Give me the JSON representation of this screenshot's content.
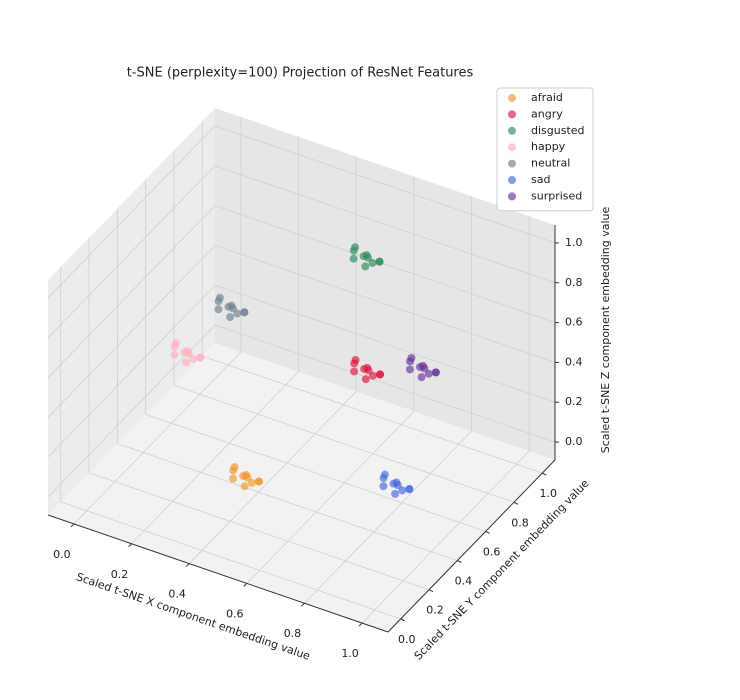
{
  "chart_data": {
    "type": "scatter3d",
    "title": "t-SNE (perplexity=100) Projection of ResNet Features",
    "xlabel": "Scaled t-SNE X component embedding value",
    "ylabel": "Scaled t-SNE Y component embedding value",
    "zlabel": "Scaled t-SNE Z component embedding value",
    "xlim": [
      -0.09,
      1.09
    ],
    "ylim": [
      -0.09,
      1.09
    ],
    "zlim": [
      -0.09,
      1.09
    ],
    "xticks": [
      {
        "value": 0,
        "label": "0.0"
      },
      0.2,
      0.4,
      0.6,
      0.8,
      {
        "value": 1,
        "label": "1.0"
      }
    ],
    "yticks": [
      {
        "value": 0,
        "label": "0.0"
      },
      0.2,
      0.4,
      0.6,
      0.8,
      {
        "value": 1,
        "label": "1.0"
      }
    ],
    "zticks": [
      {
        "value": 0,
        "label": "0.0"
      },
      0.2,
      0.4,
      0.6,
      0.8,
      {
        "value": 1,
        "label": "1.0"
      }
    ],
    "grid": true,
    "legend": "upper right",
    "series": [
      {
        "name": "afraid",
        "color": "#f0962a",
        "x": [
          0.45,
          0.49,
          0.41,
          0.48,
          0.42,
          0.47,
          0.43,
          0.5,
          0.4,
          0.46
        ],
        "y": [
          0.22,
          0.17,
          0.21,
          0.24,
          0.18,
          0.16,
          0.23,
          0.2,
          0.22,
          0.19
        ],
        "z": [
          0.14,
          0.17,
          0.18,
          0.12,
          0.19,
          0.15,
          0.13,
          0.16,
          0.11,
          0.18
        ]
      },
      {
        "name": "angry",
        "color": "#dc143c",
        "x": [
          0.6,
          0.64,
          0.56,
          0.63,
          0.57,
          0.62,
          0.58,
          0.65,
          0.55,
          0.61
        ],
        "y": [
          0.77,
          0.72,
          0.76,
          0.79,
          0.73,
          0.71,
          0.78,
          0.75,
          0.77,
          0.74
        ],
        "z": [
          0.35,
          0.38,
          0.39,
          0.33,
          0.4,
          0.36,
          0.34,
          0.37,
          0.32,
          0.39
        ]
      },
      {
        "name": "disgusted",
        "color": "#2e8b57",
        "x": [
          0.5,
          0.54,
          0.46,
          0.53,
          0.47,
          0.52,
          0.48,
          0.55,
          0.45,
          0.51
        ],
        "y": [
          0.97,
          0.92,
          0.96,
          0.99,
          0.93,
          0.91,
          0.98,
          0.95,
          0.97,
          0.94
        ],
        "z": [
          0.72,
          0.75,
          0.76,
          0.7,
          0.77,
          0.73,
          0.71,
          0.74,
          0.69,
          0.76
        ]
      },
      {
        "name": "happy",
        "color": "#ffb0bf",
        "x": [
          0.05,
          0.09,
          0.01,
          0.08,
          0.02,
          0.07,
          0.03,
          0.1,
          0.0,
          0.06
        ],
        "y": [
          0.62,
          0.57,
          0.61,
          0.64,
          0.58,
          0.56,
          0.63,
          0.6,
          0.62,
          0.59
        ],
        "z": [
          0.27,
          0.3,
          0.31,
          0.25,
          0.32,
          0.28,
          0.26,
          0.29,
          0.24,
          0.31
        ]
      },
      {
        "name": "neutral",
        "color": "#708090",
        "x": [
          0.08,
          0.12,
          0.04,
          0.11,
          0.05,
          0.1,
          0.06,
          0.13,
          0.03,
          0.09
        ],
        "y": [
          0.87,
          0.82,
          0.86,
          0.89,
          0.83,
          0.81,
          0.88,
          0.85,
          0.87,
          0.84
        ],
        "z": [
          0.33,
          0.36,
          0.37,
          0.31,
          0.38,
          0.34,
          0.32,
          0.35,
          0.3,
          0.37
        ]
      },
      {
        "name": "sad",
        "color": "#4169e1",
        "x": [
          0.8,
          0.84,
          0.76,
          0.83,
          0.77,
          0.82,
          0.78,
          0.85,
          0.75,
          0.81
        ],
        "y": [
          0.57,
          0.52,
          0.56,
          0.59,
          0.53,
          0.51,
          0.58,
          0.55,
          0.57,
          0.54
        ],
        "z": [
          0.02,
          0.05,
          0.06,
          0.0,
          0.07,
          0.03,
          0.01,
          0.04,
          -0.01,
          0.06
        ]
      },
      {
        "name": "surprised",
        "color": "#663399",
        "x": [
          0.72,
          0.76,
          0.68,
          0.75,
          0.69,
          0.74,
          0.7,
          0.77,
          0.67,
          0.73
        ],
        "y": [
          0.92,
          0.87,
          0.91,
          0.94,
          0.88,
          0.86,
          0.93,
          0.9,
          0.92,
          0.89
        ],
        "z": [
          0.31,
          0.34,
          0.35,
          0.29,
          0.36,
          0.32,
          0.3,
          0.33,
          0.28,
          0.35
        ]
      }
    ]
  }
}
